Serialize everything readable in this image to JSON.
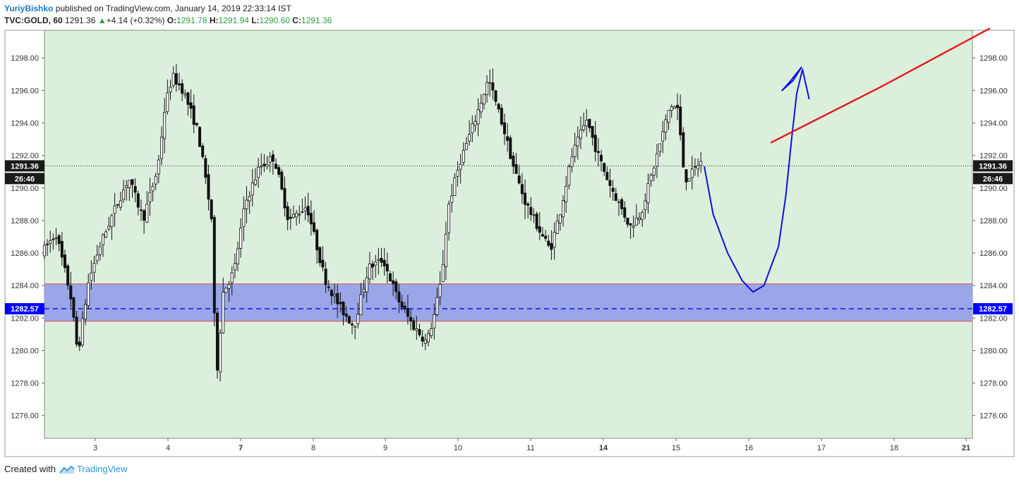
{
  "header": {
    "author": "YuriyBishko",
    "published_text": "published on TradingView.com, January 14, 2019 22:33:14 IST",
    "symbol": "TVC:GOLD, 60",
    "last": "1291.36",
    "change_arrow": "▲",
    "change": "+4.14 (+0.32%)",
    "o_label": "O:",
    "o_value": "1291.78",
    "h_label": "H:",
    "h_value": "1291.94",
    "l_label": "L:",
    "l_value": "1290.60",
    "c_label": "C:",
    "c_value": "1291.36"
  },
  "footer": {
    "created_with": "Created with",
    "brand": "TradingView",
    "logo_icon": "tradingview-logo-icon"
  },
  "colors": {
    "plot_background": "#dcefdc",
    "zone_fill": "#9aa6e8",
    "zone_border": "#e04848",
    "dashed_line": "#1a1aff",
    "price_tag_dark": "#1a1a1a",
    "price_tag_blue": "#0000ff",
    "drawing_blue": "#1010dd",
    "drawing_red": "#e31a1a"
  },
  "chart_data": {
    "type": "candlestick",
    "symbol": "TVC:GOLD",
    "interval": "60",
    "ylim": [
      1274.6,
      1299.7
    ],
    "y_ticks": [
      "1298.00",
      "1296.00",
      "1294.00",
      "1292.00",
      "1290.00",
      "1288.00",
      "1286.00",
      "1284.00",
      "1282.00",
      "1280.00",
      "1278.00",
      "1276.00"
    ],
    "x_ticks": [
      {
        "label": "3",
        "day": 3,
        "bold": false
      },
      {
        "label": "4",
        "day": 4,
        "bold": false
      },
      {
        "label": "7",
        "day": 7,
        "bold": true
      },
      {
        "label": "8",
        "day": 8,
        "bold": false
      },
      {
        "label": "9",
        "day": 9,
        "bold": false
      },
      {
        "label": "10",
        "day": 10,
        "bold": false
      },
      {
        "label": "11",
        "day": 11,
        "bold": false
      },
      {
        "label": "14",
        "day": 14,
        "bold": true
      },
      {
        "label": "15",
        "day": 15,
        "bold": false
      },
      {
        "label": "16",
        "day": 16,
        "bold": false
      },
      {
        "label": "17",
        "day": 17,
        "bold": false
      },
      {
        "label": "18",
        "day": 18,
        "bold": false
      },
      {
        "label": "21",
        "day": 21,
        "bold": true
      }
    ],
    "last_price_label": "1291.36",
    "last_price": 1291.36,
    "countdown_label": "26:46",
    "support_level_label": "1282.57",
    "support_level": 1282.57,
    "support_zone": [
      1281.8,
      1284.1
    ],
    "price_path": [
      [
        2.3,
        1286.0
      ],
      [
        2.5,
        1287.2
      ],
      [
        2.7,
        1283.4
      ],
      [
        2.8,
        1279.8
      ],
      [
        2.95,
        1284.3
      ],
      [
        3.1,
        1286.4
      ],
      [
        3.3,
        1288.6
      ],
      [
        3.5,
        1290.6
      ],
      [
        3.7,
        1288.1
      ],
      [
        3.9,
        1291.2
      ],
      [
        4.0,
        1295.0
      ],
      [
        4.1,
        1296.9
      ],
      [
        4.25,
        1296.0
      ],
      [
        4.45,
        1293.5
      ],
      [
        4.55,
        1290.8
      ],
      [
        4.65,
        1287.8
      ],
      [
        4.7,
        1277.9
      ],
      [
        4.8,
        1283.6
      ],
      [
        4.95,
        1284.9
      ],
      [
        5.1,
        1289.0
      ],
      [
        5.3,
        1291.3
      ],
      [
        5.5,
        1291.9
      ],
      [
        5.7,
        1288.0
      ],
      [
        5.95,
        1288.9
      ],
      [
        6.2,
        1284.4
      ],
      [
        6.4,
        1282.7
      ],
      [
        6.6,
        1281.5
      ],
      [
        6.8,
        1285.1
      ],
      [
        7.0,
        1285.6
      ],
      [
        7.2,
        1283.2
      ],
      [
        7.4,
        1281.6
      ],
      [
        7.6,
        1280.5
      ],
      [
        7.7,
        1282.1
      ],
      [
        7.8,
        1284.3
      ],
      [
        7.9,
        1288.9
      ],
      [
        8.05,
        1291.5
      ],
      [
        8.25,
        1294.0
      ],
      [
        8.45,
        1296.7
      ],
      [
        8.65,
        1293.8
      ],
      [
        8.8,
        1291.2
      ],
      [
        8.95,
        1289.2
      ],
      [
        9.15,
        1287.4
      ],
      [
        9.3,
        1286.2
      ],
      [
        9.45,
        1288.8
      ],
      [
        9.6,
        1292.0
      ],
      [
        9.8,
        1294.2
      ],
      [
        9.95,
        1292.1
      ],
      [
        10.1,
        1290.4
      ],
      [
        10.25,
        1289.0
      ],
      [
        10.4,
        1287.6
      ],
      [
        10.55,
        1288.5
      ],
      [
        10.7,
        1290.9
      ],
      [
        10.85,
        1293.4
      ],
      [
        10.95,
        1295.1
      ],
      [
        11.05,
        1294.9
      ],
      [
        11.15,
        1290.5
      ],
      [
        11.25,
        1290.9
      ],
      [
        11.35,
        1291.58
      ]
    ],
    "projection": {
      "blue_curve": [
        [
          11.38,
          1291.3
        ],
        [
          11.5,
          1288.4
        ],
        [
          11.7,
          1286.0
        ],
        [
          11.9,
          1284.3
        ],
        [
          12.05,
          1283.6
        ],
        [
          12.2,
          1284.0
        ],
        [
          12.4,
          1286.4
        ],
        [
          12.5,
          1289.5
        ],
        [
          12.58,
          1293.0
        ],
        [
          12.65,
          1295.8
        ],
        [
          12.73,
          1297.3
        ],
        [
          12.82,
          1295.5
        ]
      ],
      "blue_loop": [
        [
          12.72,
          1297.45
        ],
        [
          12.6,
          1296.6
        ],
        [
          12.45,
          1296.0
        ],
        [
          12.55,
          1296.5
        ],
        [
          12.72,
          1297.45
        ]
      ],
      "red_line": [
        [
          12.3,
          1292.8
        ],
        [
          13.8,
          1296.2
        ],
        [
          15.3,
          1299.8
        ]
      ]
    }
  }
}
